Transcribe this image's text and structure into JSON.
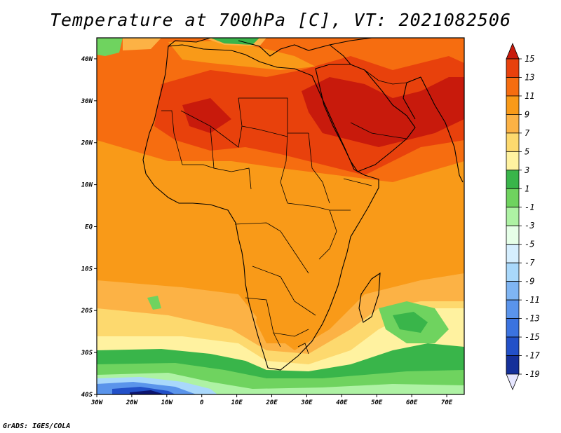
{
  "title": "Temperature at 700hPa [C], VT: 2021082506",
  "footer": "GrADS: IGES/COLA",
  "map": {
    "lat_labels": [
      "40N",
      "30N",
      "20N",
      "10N",
      "EQ",
      "10S",
      "20S",
      "30S",
      "40S"
    ],
    "lon_labels": [
      "30W",
      "20W",
      "10W",
      "0",
      "10E",
      "20E",
      "30E",
      "40E",
      "50E",
      "60E",
      "70E"
    ],
    "lat_range": [
      -40,
      45
    ],
    "lon_range": [
      -30,
      75
    ]
  },
  "colorbar": {
    "labels": [
      "15",
      "13",
      "11",
      "9",
      "7",
      "5",
      "3",
      "1",
      "-1",
      "-3",
      "-5",
      "-7",
      "-9",
      "-11",
      "-13",
      "-15",
      "-17",
      "-19"
    ],
    "colors": [
      "#c81a0c",
      "#e8410c",
      "#f66d10",
      "#f99a18",
      "#fcb245",
      "#fdd96e",
      "#fff2a0",
      "#39b54a",
      "#6fd35f",
      "#aef2a4",
      "#e6ffe8",
      "#d5eefe",
      "#a9d8fb",
      "#7fb5f3",
      "#5a94eb",
      "#3b73e0",
      "#2250c8",
      "#15309a",
      "#0c1470"
    ]
  }
}
